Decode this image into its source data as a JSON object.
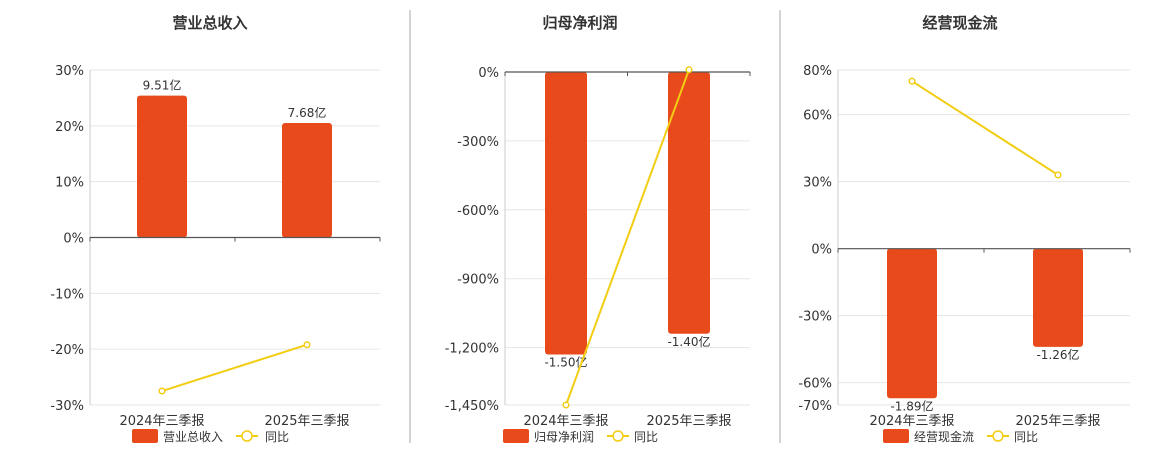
{
  "colors": {
    "bar": "#E84A1B",
    "line": "#F2CD12",
    "grid": "#E6E6E6",
    "axis": "#555555",
    "divider": "#AAAAAA"
  },
  "legend": {
    "line_label": "同比"
  },
  "chart_data": [
    {
      "type": "bar",
      "title": "营业总收入",
      "legend_bar": "营业总收入",
      "categories": [
        "2024年三季报",
        "2025年三季报"
      ],
      "bar_values_pct": [
        25.4,
        20.5
      ],
      "bar_labels": [
        "9.51亿",
        "7.68亿"
      ],
      "line_values": [
        -27.5,
        -19.2
      ],
      "yticks": [
        30,
        20,
        10,
        0,
        -10,
        -20,
        -30
      ],
      "ytick_labels": [
        "30%",
        "20%",
        "10%",
        "0%",
        "-10%",
        "-20%",
        "-30%"
      ],
      "ylim": [
        -30,
        30
      ],
      "grid": true,
      "legend_position": "bottom"
    },
    {
      "type": "bar",
      "title": "归母净利润",
      "legend_bar": "归母净利润",
      "categories": [
        "2024年三季报",
        "2025年三季报"
      ],
      "bar_values_pct": [
        -1230,
        -1140
      ],
      "bar_labels": [
        "-1.50亿",
        "-1.40亿"
      ],
      "line_values": [
        -1450,
        10
      ],
      "yticks": [
        0,
        -300,
        -600,
        -900,
        -1200,
        -1450
      ],
      "ytick_labels": [
        "0%",
        "-300%",
        "-600%",
        "-900%",
        "-1,200%",
        "-1,450%"
      ],
      "ylim": [
        -1450,
        0
      ],
      "grid": true,
      "legend_position": "bottom"
    },
    {
      "type": "bar",
      "title": "经营现金流",
      "legend_bar": "经营现金流",
      "categories": [
        "2024年三季报",
        "2025年三季报"
      ],
      "bar_values_pct": [
        -67,
        -44
      ],
      "bar_labels": [
        "-1.89亿",
        "-1.26亿"
      ],
      "line_values": [
        75,
        33
      ],
      "yticks": [
        80,
        60,
        30,
        0,
        -30,
        -60,
        -70
      ],
      "ytick_labels": [
        "80%",
        "60%",
        "30%",
        "0%",
        "-30%",
        "-60%",
        "-70%"
      ],
      "ylim": [
        -70,
        80
      ],
      "grid": true,
      "legend_position": "bottom"
    }
  ]
}
